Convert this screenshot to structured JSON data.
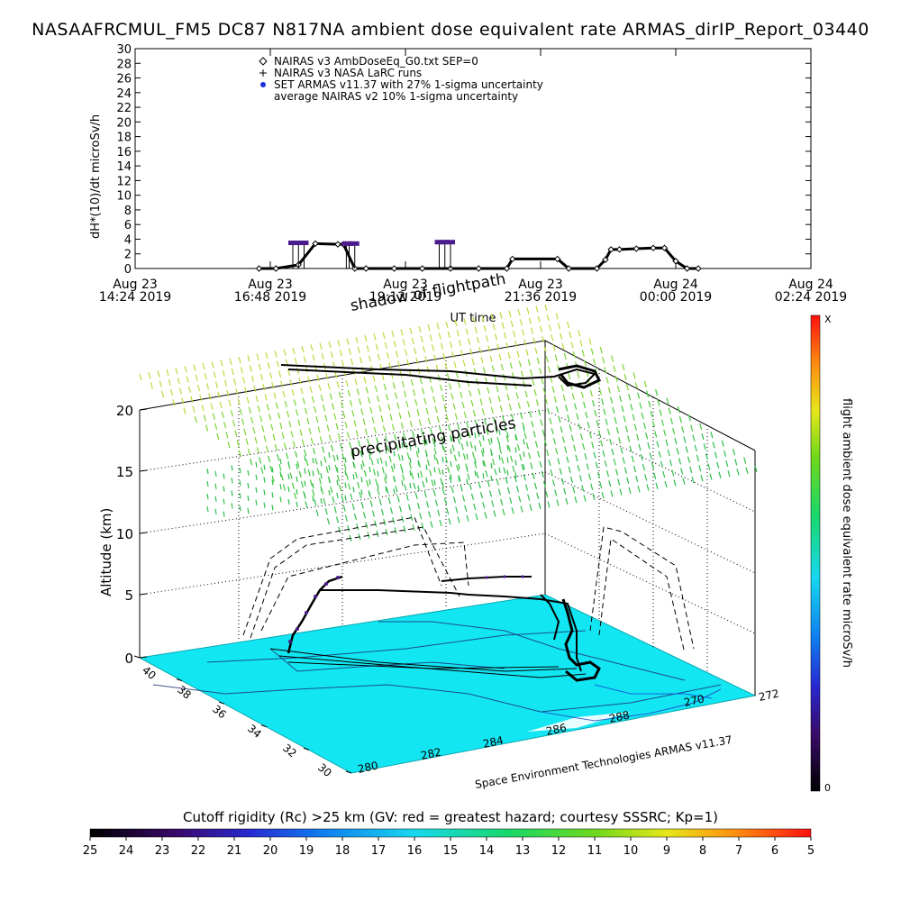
{
  "title": "NASAAFRCMUL_FM5 DC87 N817NA ambient dose equivalent rate ARMAS_dirIP_Report_03440",
  "chart_data": [
    {
      "type": "line",
      "title": "NASAAFRCMUL_FM5 DC87 N817NA ambient dose equivalent rate ARMAS_dirIP_Report_03440",
      "xlabel": "UT time",
      "ylabel": "dH*(10)/dt microSv/h",
      "ylim": [
        0,
        30
      ],
      "yticks": [
        0,
        2,
        4,
        6,
        8,
        10,
        12,
        14,
        16,
        18,
        20,
        22,
        24,
        26,
        28,
        30
      ],
      "xtick_labels": [
        {
          "date": "Aug 23",
          "time": "14:24 2019"
        },
        {
          "date": "Aug 23",
          "time": "16:48 2019"
        },
        {
          "date": "Aug 23",
          "time": "19:12 2019"
        },
        {
          "date": "Aug 23",
          "time": "21:36 2019"
        },
        {
          "date": "Aug 24",
          "time": "00:00 2019"
        },
        {
          "date": "Aug 24",
          "time": "02:24 2019"
        }
      ],
      "xlim_hours_ut": [
        14.4,
        26.4
      ],
      "legend": [
        {
          "symbol": "diamond",
          "label": "NAIRAS v3 AmbDoseEq_G0.txt SEP=0"
        },
        {
          "symbol": "plus",
          "label": "NAIRAS v3 NASA LaRC runs"
        },
        {
          "symbol": "blue-dot",
          "label": "SET ARMAS v11.37 with 27% 1-sigma uncertainty"
        },
        {
          "symbol": "none",
          "label": "average NAIRAS v2 10% 1-sigma uncertainty"
        }
      ],
      "legend_position": "top-left",
      "series": [
        {
          "name": "NAIRAS v3 AmbDoseEq_G0.txt SEP=0",
          "x": [
            16.6,
            16.9,
            17.3,
            17.6,
            18.0,
            18.1,
            18.3,
            18.5,
            19.0,
            19.5,
            20.0,
            20.5,
            21.0,
            21.1,
            21.9,
            22.1,
            22.6,
            22.75,
            22.85,
            23.0,
            23.3,
            23.6,
            23.8,
            24.0,
            24.2,
            24.4
          ],
          "y": [
            0,
            0,
            0.5,
            3.4,
            3.3,
            3.3,
            0,
            0,
            0,
            0,
            0,
            0,
            0,
            1.3,
            1.3,
            0,
            0,
            1.2,
            2.6,
            2.6,
            2.7,
            2.8,
            2.8,
            1.0,
            0,
            0
          ]
        },
        {
          "name": "SET ARMAS v11.37 with 27% 1-sigma uncertainty",
          "x": [
            17.2,
            17.3,
            17.4,
            18.15,
            18.2,
            18.3,
            19.8,
            19.9,
            20.0
          ],
          "y": [
            3.5,
            3.5,
            3.5,
            3.4,
            3.4,
            3.4,
            3.6,
            3.6,
            3.6
          ]
        }
      ]
    },
    {
      "type": "scatter",
      "subtype": "3d-flight-path",
      "zlabel": "Altitude (km)",
      "zticks": [
        0,
        5,
        10,
        15,
        20
      ],
      "lat_ticks": [
        40,
        38,
        36,
        34,
        32,
        30
      ],
      "lon_ticks": [
        280,
        282,
        284,
        286,
        288,
        270,
        272
      ],
      "annotations": [
        "shadow of flightpath",
        "precipitating particles",
        "Space Environment Technologies ARMAS v11.37"
      ],
      "colorbar": {
        "label": "flight ambient dose equivalent rate microSv/h",
        "min_label": "0",
        "max_label": "X"
      }
    },
    {
      "type": "heatmap",
      "subtype": "colorbar",
      "title": "Cutoff rigidity (Rc) >25 km (GV: red = greatest hazard; courtesy SSSRC; Kp=1)",
      "ticks": [
        25,
        24,
        23,
        22,
        21,
        20,
        19,
        18,
        17,
        16,
        15,
        14,
        13,
        12,
        11,
        10,
        9,
        8,
        7,
        6,
        5
      ]
    }
  ],
  "colors": {
    "armas_marker": "#4b1a8c",
    "map_fill": "#13e6f3",
    "particles": [
      "#b7dc3a",
      "#7cd432",
      "#3fc83a",
      "#2ebf4c"
    ]
  }
}
